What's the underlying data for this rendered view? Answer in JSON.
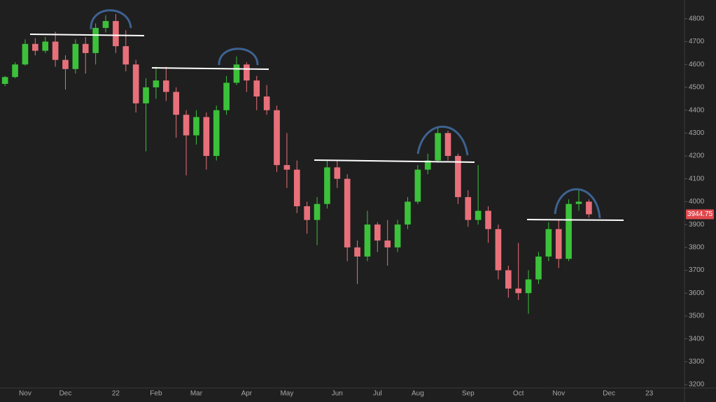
{
  "chart_data": {
    "type": "candlestick",
    "categories": [
      null,
      null,
      "Nov",
      null,
      null,
      null,
      "Dec",
      null,
      null,
      null,
      null,
      "22",
      null,
      null,
      null,
      "Feb",
      null,
      null,
      null,
      "Mar",
      null,
      null,
      null,
      null,
      "Apr",
      null,
      null,
      null,
      "May",
      null,
      null,
      null,
      null,
      "Jun",
      null,
      null,
      null,
      "Jul",
      null,
      null,
      null,
      "Aug",
      null,
      null,
      null,
      null,
      "Sep",
      null,
      null,
      null,
      null,
      "Oct",
      null,
      null,
      null,
      "Nov",
      null,
      null,
      null,
      null,
      "Dec",
      null,
      null,
      null,
      "23",
      null,
      null,
      null
    ],
    "open": [
      4515,
      4545,
      4600,
      4690,
      4660,
      4700,
      4620,
      4580,
      4690,
      4650,
      4760,
      4790,
      4680,
      4600,
      4430,
      4500,
      4530,
      4480,
      4380,
      4290,
      4370,
      4200,
      4400,
      4520,
      4600,
      4530,
      4460,
      4400,
      4160,
      4140,
      3980,
      3920,
      3990,
      4150,
      4100,
      3800,
      3760,
      3900,
      3830,
      3800,
      3900,
      4000,
      4140,
      4180,
      4300,
      4200,
      4020,
      3920,
      3960,
      3880,
      3700,
      3620,
      3600,
      3660,
      3760,
      3880,
      3750,
      3990,
      4000,
      null,
      null,
      null,
      null,
      null,
      null,
      null,
      null,
      null
    ],
    "high": [
      4550,
      4610,
      4710,
      4715,
      4720,
      4743,
      4640,
      4710,
      4720,
      4780,
      4815,
      4820,
      4750,
      4620,
      4540,
      4590,
      4590,
      4500,
      4400,
      4400,
      4390,
      4420,
      4550,
      4635,
      4610,
      4550,
      4510,
      4420,
      4300,
      4180,
      4000,
      4020,
      4180,
      4180,
      4120,
      3830,
      3960,
      3910,
      3920,
      3920,
      4020,
      4160,
      4210,
      4325,
      4310,
      4210,
      4050,
      4160,
      3980,
      3900,
      3720,
      3820,
      3700,
      3780,
      3910,
      3920,
      4010,
      4050,
      4010,
      null,
      null,
      null,
      null,
      null,
      null,
      null,
      null,
      null
    ],
    "low": [
      4505,
      4540,
      4595,
      4640,
      4650,
      4590,
      4490,
      4560,
      4560,
      4600,
      4740,
      4650,
      4570,
      4390,
      4220,
      4450,
      4440,
      4280,
      4115,
      4250,
      4140,
      4180,
      4380,
      4510,
      4480,
      4400,
      4380,
      4130,
      4060,
      3950,
      3860,
      3810,
      3970,
      4060,
      3740,
      3640,
      3740,
      3780,
      3720,
      3780,
      3880,
      3990,
      4120,
      4170,
      4180,
      3990,
      3890,
      3900,
      3820,
      3660,
      3580,
      3570,
      3510,
      3640,
      3740,
      3710,
      3740,
      3960,
      3930,
      null,
      null,
      null,
      null,
      null,
      null,
      null,
      null,
      null
    ],
    "close": [
      4545,
      4600,
      4690,
      4660,
      4700,
      4620,
      4580,
      4690,
      4650,
      4760,
      4790,
      4680,
      4600,
      4430,
      4500,
      4530,
      4480,
      4380,
      4290,
      4370,
      4200,
      4400,
      4520,
      4600,
      4530,
      4460,
      4400,
      4160,
      4140,
      3980,
      3920,
      3990,
      4150,
      4100,
      3800,
      3760,
      3900,
      3830,
      3800,
      3900,
      4000,
      4140,
      4180,
      4300,
      4200,
      4020,
      3920,
      3960,
      3880,
      3700,
      3620,
      3600,
      3660,
      3760,
      3880,
      3750,
      3990,
      4000,
      3944.75,
      null,
      null,
      null,
      null,
      null,
      null,
      null,
      null,
      null
    ],
    "up_color": "#3cc13b",
    "down_color": "#e8707a",
    "last_price": 3944.75,
    "last_price_color": "#e0474c",
    "ylim": [
      3185,
      4882
    ],
    "yticks": [
      3200,
      3300,
      3400,
      3500,
      3600,
      3700,
      3800,
      3900,
      4000,
      4100,
      4200,
      4300,
      4400,
      4500,
      4600,
      4700,
      4800
    ]
  }
}
